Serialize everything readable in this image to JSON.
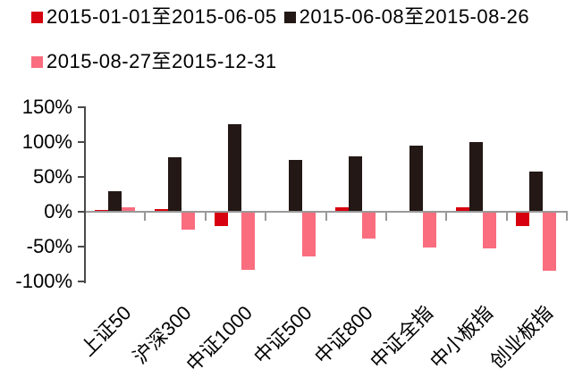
{
  "legend": {
    "items": [
      {
        "label": "2015-01-01至2015-06-05",
        "color": "#d7000f"
      },
      {
        "label": "2015-06-08至2015-08-26",
        "color": "#231815"
      },
      {
        "label": "2015-08-27至2015-12-31",
        "color": "#f96d7f"
      }
    ]
  },
  "chart_data": {
    "type": "bar",
    "title": "",
    "xlabel": "",
    "ylabel": "",
    "categories": [
      "上证50",
      "沪深300",
      "中证1000",
      "中证500",
      "中证800",
      "中证全指",
      "中小板指",
      "创业板指"
    ],
    "series": [
      {
        "name": "2015-01-01至2015-06-05",
        "color": "#d7000f",
        "values": [
          2,
          4,
          -21,
          0.5,
          6,
          -1,
          6,
          -20
        ]
      },
      {
        "name": "2015-06-08至2015-08-26",
        "color": "#231815",
        "values": [
          29,
          78,
          126,
          75,
          80,
          95,
          100,
          58
        ]
      },
      {
        "name": "2015-08-27至2015-12-31",
        "color": "#f96d7f",
        "values": [
          6,
          -26,
          -83,
          -64,
          -38,
          -51,
          -53,
          -84
        ]
      }
    ],
    "unit": "%",
    "y_ticks": [
      "150%",
      "100%",
      "50%",
      "0%",
      "-50%",
      "-100%"
    ],
    "y_tick_values": [
      150,
      100,
      50,
      0,
      -50,
      -100
    ],
    "ylim": [
      -100,
      150
    ],
    "grid": false,
    "legend_position": "top-left"
  }
}
